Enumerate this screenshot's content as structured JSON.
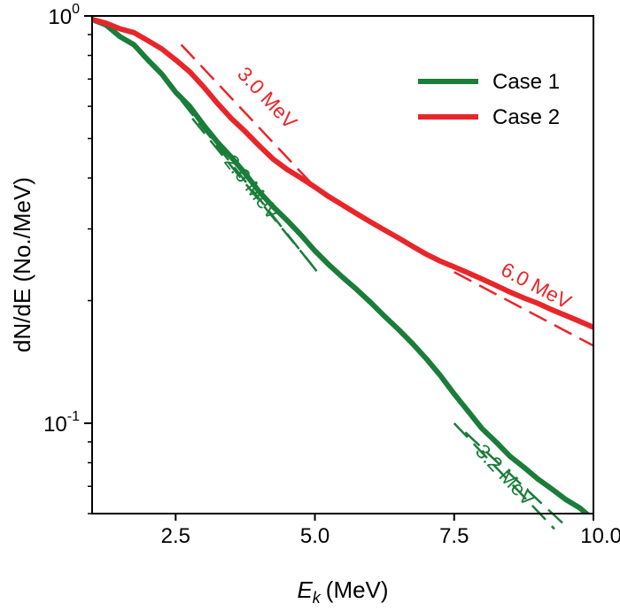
{
  "chart_data": {
    "type": "line",
    "title": "",
    "xlabel": {
      "symbol": "E",
      "subscript": "k",
      "unit": "(MeV)"
    },
    "ylabel": "dN/dE (No./MeV)",
    "xlim": [
      1.0,
      10.0
    ],
    "ylim": [
      0.06,
      1.0
    ],
    "yscale": "log",
    "grid": false,
    "legend_position": "top-right",
    "xticks": [
      2.5,
      5.0,
      7.5,
      10.0
    ],
    "xtick_labels": [
      "2.5",
      "5.0",
      "7.5",
      "10.0"
    ],
    "yticks": [
      {
        "value": 1.0,
        "base": "10",
        "exp": "0"
      },
      {
        "value": 0.1,
        "base": "10",
        "exp": "-1"
      }
    ],
    "series": [
      {
        "name": "Case 1",
        "color": "#1a7d3a",
        "x": [
          1.0,
          1.25,
          1.5,
          1.75,
          2.0,
          2.25,
          2.5,
          2.75,
          3.0,
          3.25,
          3.5,
          3.75,
          4.0,
          4.25,
          4.5,
          4.75,
          5.0,
          5.25,
          5.5,
          5.75,
          6.0,
          6.25,
          6.5,
          6.75,
          7.0,
          7.25,
          7.5,
          7.75,
          8.0,
          8.25,
          8.5,
          8.75,
          9.0,
          9.25,
          9.5,
          9.75,
          10.0
        ],
        "y": [
          0.98,
          0.95,
          0.89,
          0.85,
          0.78,
          0.72,
          0.65,
          0.6,
          0.54,
          0.49,
          0.45,
          0.41,
          0.37,
          0.34,
          0.315,
          0.29,
          0.265,
          0.245,
          0.228,
          0.213,
          0.198,
          0.183,
          0.17,
          0.157,
          0.144,
          0.131,
          0.118,
          0.107,
          0.097,
          0.09,
          0.083,
          0.078,
          0.073,
          0.069,
          0.065,
          0.062,
          0.058
        ]
      },
      {
        "name": "Case 2",
        "color": "#e8262a",
        "x": [
          1.0,
          1.25,
          1.5,
          1.75,
          2.0,
          2.25,
          2.5,
          2.75,
          3.0,
          3.25,
          3.5,
          3.75,
          4.0,
          4.25,
          4.5,
          4.75,
          5.0,
          5.25,
          5.5,
          5.75,
          6.0,
          6.25,
          6.5,
          6.75,
          7.0,
          7.25,
          7.5,
          7.75,
          8.0,
          8.25,
          8.5,
          8.75,
          9.0,
          9.25,
          9.5,
          9.75,
          10.0
        ],
        "y": [
          0.98,
          0.96,
          0.93,
          0.91,
          0.87,
          0.83,
          0.78,
          0.73,
          0.67,
          0.61,
          0.56,
          0.52,
          0.48,
          0.445,
          0.42,
          0.4,
          0.38,
          0.36,
          0.343,
          0.327,
          0.312,
          0.298,
          0.285,
          0.272,
          0.26,
          0.25,
          0.242,
          0.234,
          0.226,
          0.218,
          0.21,
          0.203,
          0.197,
          0.19,
          0.184,
          0.178,
          0.172
        ]
      }
    ],
    "fit_lines": [
      {
        "label": "3.0 MeV",
        "color": "#e8262a",
        "x": [
          2.6,
          5.0
        ],
        "y": [
          0.85,
          0.38
        ]
      },
      {
        "label": "6.0 MeV",
        "color": "#e8262a",
        "x": [
          7.5,
          10.0
        ],
        "y": [
          0.235,
          0.155
        ]
      },
      {
        "label": "2.6 MeV",
        "color": "#1a7d3a",
        "x": [
          2.6,
          5.1
        ],
        "y": [
          0.62,
          0.23
        ]
      },
      {
        "label": "3.2 MeV",
        "color": "#1a7d3a",
        "x": [
          7.5,
          9.3
        ],
        "y": [
          0.1,
          0.055
        ]
      },
      {
        "label": "",
        "color": "#1a7d3a",
        "x": [
          2.8,
          5.05
        ],
        "y": [
          0.56,
          0.235
        ]
      },
      {
        "label": "",
        "color": "#1a7d3a",
        "x": [
          7.7,
          9.5
        ],
        "y": [
          0.095,
          0.056
        ]
      }
    ]
  }
}
